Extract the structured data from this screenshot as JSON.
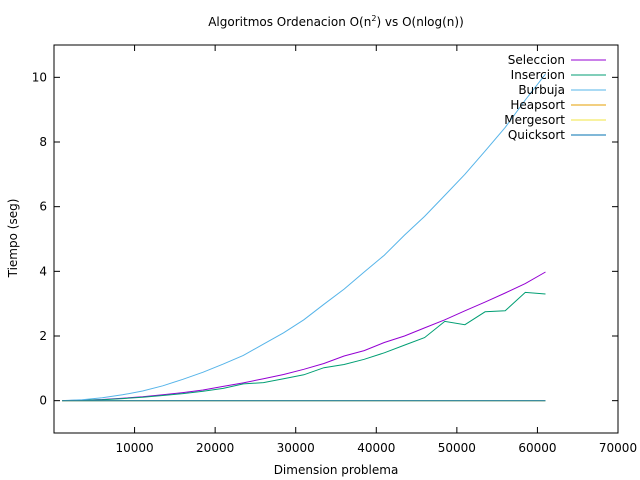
{
  "chart_data": {
    "type": "line",
    "title_main": "Algoritmos Ordenacion O(n",
    "title_sup": "2",
    "title_rest": ") vs O(nlog(n))",
    "xlabel": "Dimension problema",
    "ylabel": "Tiempo (seg)",
    "xlim": [
      0,
      70000
    ],
    "ylim": [
      -1,
      11
    ],
    "x_ticks": [
      10000,
      20000,
      30000,
      40000,
      50000,
      60000,
      70000
    ],
    "y_ticks": [
      0,
      2,
      4,
      6,
      8,
      10
    ],
    "grid": false,
    "legend_position": "top-right",
    "series": [
      {
        "name": "Seleccion",
        "color": "#9400d3",
        "x": [
          1000,
          3500,
          6000,
          8500,
          11000,
          13500,
          16000,
          18500,
          21000,
          23500,
          26000,
          28500,
          31000,
          33500,
          36000,
          38500,
          41000,
          43500,
          46000,
          48500,
          51000,
          53500,
          56000,
          58500,
          61000
        ],
        "y": [
          0.001,
          0.012,
          0.035,
          0.075,
          0.12,
          0.18,
          0.25,
          0.33,
          0.44,
          0.55,
          0.68,
          0.81,
          0.97,
          1.15,
          1.38,
          1.55,
          1.8,
          2.0,
          2.25,
          2.5,
          2.78,
          3.05,
          3.33,
          3.62,
          3.98
        ]
      },
      {
        "name": "Insercion",
        "color": "#009e73",
        "x": [
          1000,
          3500,
          6000,
          8500,
          11000,
          13500,
          16000,
          18500,
          21000,
          23500,
          26000,
          28500,
          31000,
          33500,
          36000,
          38500,
          41000,
          43500,
          46000,
          48500,
          51000,
          53500,
          56000,
          58500,
          61000
        ],
        "y": [
          0.001,
          0.01,
          0.03,
          0.065,
          0.105,
          0.16,
          0.22,
          0.29,
          0.38,
          0.52,
          0.56,
          0.68,
          0.8,
          1.02,
          1.12,
          1.28,
          1.48,
          1.72,
          1.95,
          2.45,
          2.35,
          2.75,
          2.78,
          3.35,
          3.3
        ]
      },
      {
        "name": "Burbuja",
        "color": "#56b4e9",
        "x": [
          1000,
          3500,
          6000,
          8500,
          11000,
          13500,
          16000,
          18500,
          21000,
          23500,
          26000,
          28500,
          31000,
          33500,
          36000,
          38500,
          41000,
          43500,
          46000,
          48500,
          51000,
          53500,
          56000,
          58500,
          61000
        ],
        "y": [
          0.003,
          0.03,
          0.09,
          0.18,
          0.3,
          0.46,
          0.66,
          0.88,
          1.13,
          1.4,
          1.75,
          2.1,
          2.5,
          2.98,
          3.45,
          3.98,
          4.5,
          5.12,
          5.7,
          6.35,
          7.0,
          7.72,
          8.45,
          9.3,
          10.1
        ]
      },
      {
        "name": "Heapsort",
        "color": "#e69f00",
        "x": [
          1000,
          61000
        ],
        "y": [
          0,
          0
        ]
      },
      {
        "name": "Mergesort",
        "color": "#f0e442",
        "x": [
          1000,
          61000
        ],
        "y": [
          0,
          0
        ]
      },
      {
        "name": "Quicksort",
        "color": "#0072b2",
        "x": [
          1000,
          61000
        ],
        "y": [
          0,
          0
        ]
      }
    ]
  }
}
